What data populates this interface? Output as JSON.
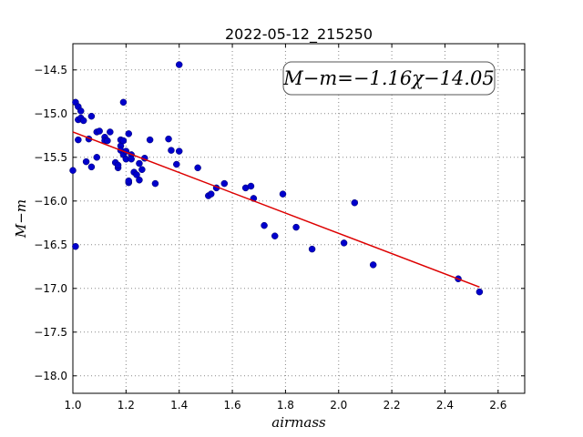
{
  "chart_data": {
    "type": "scatter",
    "title": "2022-05-12_215250",
    "xlabel": "airmass",
    "ylabel": "M−m",
    "xlim": [
      1.0,
      2.7
    ],
    "ylim": [
      -18.2,
      -14.2
    ],
    "y_inverted": true,
    "grid": true,
    "x_ticks": [
      1.0,
      1.2,
      1.4,
      1.6,
      1.8,
      2.0,
      2.2,
      2.4,
      2.6
    ],
    "x_tick_labels": [
      "1.0",
      "1.2",
      "1.4",
      "1.6",
      "1.8",
      "2.0",
      "2.2",
      "2.4",
      "2.6"
    ],
    "y_ticks": [
      -14.5,
      -15.0,
      -15.5,
      -16.0,
      -16.5,
      -17.0,
      -17.5,
      -18.0
    ],
    "y_tick_labels": [
      "−14.5",
      "−15.0",
      "−15.5",
      "−16.0",
      "−16.5",
      "−17.0",
      "−17.5",
      "−18.0"
    ],
    "annotation": "M−m=−1.16χ−14.05",
    "annotation_position": "top-right",
    "fit": {
      "slope": -1.16,
      "intercept": -14.05,
      "x_range": [
        1.0,
        2.53
      ],
      "color": "#dd0000"
    },
    "point_color": "#0000cc",
    "points": [
      [
        1.0,
        -15.65
      ],
      [
        1.01,
        -16.52
      ],
      [
        1.01,
        -14.87
      ],
      [
        1.02,
        -15.07
      ],
      [
        1.02,
        -14.92
      ],
      [
        1.02,
        -15.3
      ],
      [
        1.03,
        -15.05
      ],
      [
        1.03,
        -14.97
      ],
      [
        1.04,
        -15.08
      ],
      [
        1.05,
        -15.55
      ],
      [
        1.06,
        -15.29
      ],
      [
        1.07,
        -15.61
      ],
      [
        1.07,
        -15.03
      ],
      [
        1.09,
        -15.21
      ],
      [
        1.1,
        -15.2
      ],
      [
        1.09,
        -15.5
      ],
      [
        1.12,
        -15.27
      ],
      [
        1.12,
        -15.31
      ],
      [
        1.13,
        -15.31
      ],
      [
        1.14,
        -15.21
      ],
      [
        1.16,
        -15.56
      ],
      [
        1.17,
        -15.62
      ],
      [
        1.17,
        -15.59
      ],
      [
        1.18,
        -15.37
      ],
      [
        1.18,
        -15.3
      ],
      [
        1.18,
        -15.42
      ],
      [
        1.19,
        -15.31
      ],
      [
        1.19,
        -14.87
      ],
      [
        1.19,
        -15.47
      ],
      [
        1.2,
        -15.52
      ],
      [
        1.2,
        -15.43
      ],
      [
        1.21,
        -15.23
      ],
      [
        1.21,
        -15.79
      ],
      [
        1.21,
        -15.77
      ],
      [
        1.22,
        -15.47
      ],
      [
        1.22,
        -15.52
      ],
      [
        1.23,
        -15.67
      ],
      [
        1.24,
        -15.7
      ],
      [
        1.25,
        -15.57
      ],
      [
        1.25,
        -15.76
      ],
      [
        1.26,
        -15.64
      ],
      [
        1.27,
        -15.51
      ],
      [
        1.29,
        -15.3
      ],
      [
        1.31,
        -15.8
      ],
      [
        1.36,
        -15.29
      ],
      [
        1.37,
        -15.42
      ],
      [
        1.39,
        -15.58
      ],
      [
        1.4,
        -15.43
      ],
      [
        1.4,
        -14.44
      ],
      [
        1.47,
        -15.62
      ],
      [
        1.51,
        -15.94
      ],
      [
        1.52,
        -15.92
      ],
      [
        1.54,
        -15.85
      ],
      [
        1.57,
        -15.8
      ],
      [
        1.65,
        -15.85
      ],
      [
        1.67,
        -15.83
      ],
      [
        1.68,
        -15.97
      ],
      [
        1.72,
        -16.28
      ],
      [
        1.76,
        -16.4
      ],
      [
        1.79,
        -15.92
      ],
      [
        1.84,
        -16.3
      ],
      [
        1.9,
        -16.55
      ],
      [
        2.02,
        -16.48
      ],
      [
        2.06,
        -16.02
      ],
      [
        2.13,
        -16.73
      ],
      [
        2.45,
        -16.89
      ],
      [
        2.53,
        -17.04
      ]
    ]
  }
}
